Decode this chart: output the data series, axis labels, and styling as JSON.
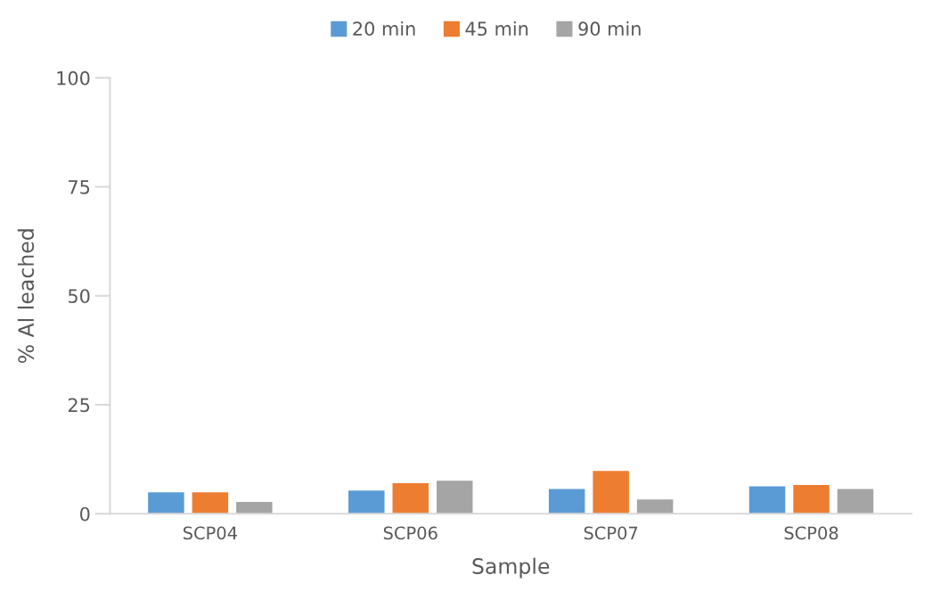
{
  "chart_data": {
    "type": "bar",
    "xlabel": "Sample",
    "ylabel": "% Al leached",
    "categories": [
      "SCP04",
      "SCP06",
      "SCP07",
      "SCP08"
    ],
    "series": [
      {
        "name": "20 min",
        "color": "#5b9bd5",
        "values": [
          4.9,
          5.3,
          5.7,
          6.3
        ]
      },
      {
        "name": "45 min",
        "color": "#ed7d31",
        "values": [
          4.9,
          7.0,
          9.8,
          6.6
        ]
      },
      {
        "name": "90 min",
        "color": "#a5a5a5",
        "values": [
          2.7,
          7.6,
          3.3,
          5.7
        ]
      }
    ],
    "ylim": [
      0,
      100
    ],
    "yticks": [
      0,
      25,
      50,
      75,
      100
    ],
    "grid": false,
    "legend": "top"
  }
}
